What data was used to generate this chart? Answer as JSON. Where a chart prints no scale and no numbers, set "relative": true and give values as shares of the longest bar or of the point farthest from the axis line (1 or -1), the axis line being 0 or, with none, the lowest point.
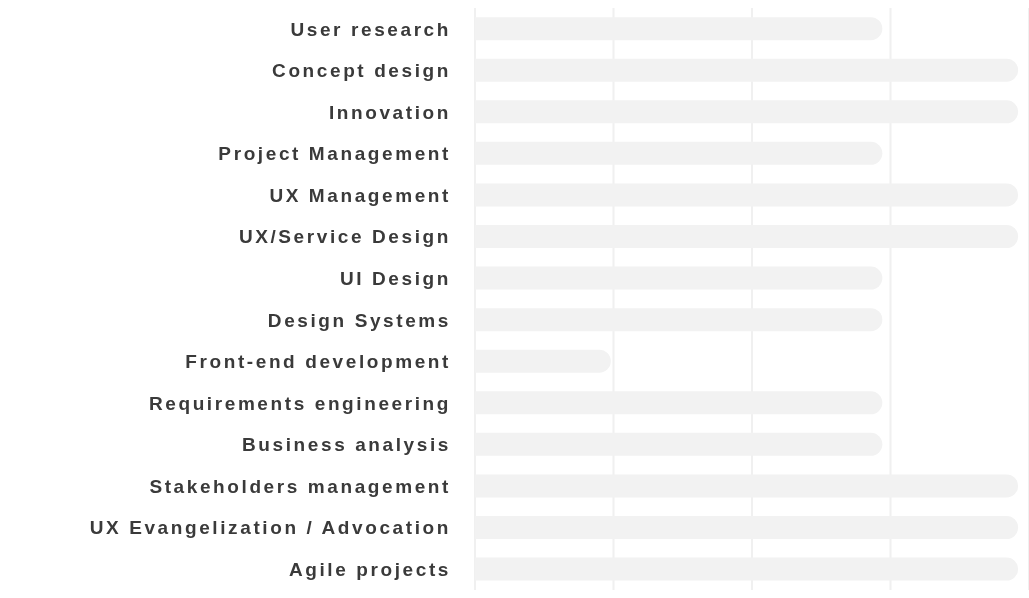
{
  "chart_data": {
    "type": "bar",
    "orientation": "horizontal",
    "relative": true,
    "grid": "x",
    "categories": [
      "User research",
      "Concept design",
      "Innovation",
      "Project Management",
      "UX Management",
      "UX/Service Design",
      "UI Design",
      "Design Systems",
      "Front-end development",
      "Requirements engineering",
      "Business analysis",
      "Stakeholders management",
      "UX Evangelization / Advocation",
      "Agile projects"
    ],
    "values": [
      0.75,
      1,
      1,
      0.75,
      1,
      1,
      0.75,
      0.75,
      0.25,
      0.75,
      0.75,
      1,
      1,
      1
    ],
    "color": "#f2f2f2"
  }
}
